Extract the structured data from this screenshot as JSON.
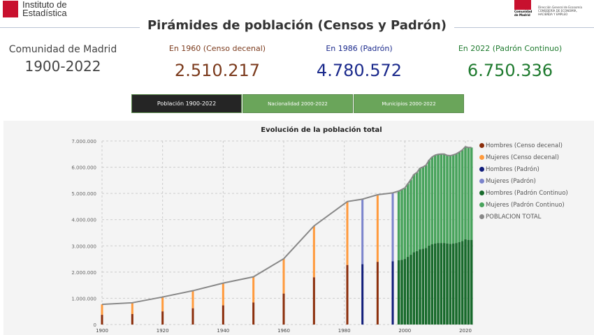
{
  "header": {
    "logo_left_text": [
      "Instituto de",
      "Estadística"
    ],
    "logo_right_text": [
      "Comunidad de Madrid",
      "Dirección General de Economía",
      "CONSEJERÍA DE ECONOMÍA, HACIENDA Y EMPLEO"
    ],
    "title": "Pirámides de población (Censos y Padrón)"
  },
  "region": {
    "name": "Comunidad de Madrid",
    "period": "1900-2022"
  },
  "stats": [
    {
      "label": "En 1960 (Censo decenal)",
      "value": "2.510.217",
      "color": "#7b3a1c"
    },
    {
      "label": "En 1986 (Padrón)",
      "value": "4.780.572",
      "color": "#1b2a8c"
    },
    {
      "label": "En 2022 (Padrón Continuo)",
      "value": "6.750.336",
      "color": "#1e7a2e"
    }
  ],
  "tabs": [
    {
      "label": "Población 1900-2022",
      "active": true
    },
    {
      "label": "Nacionalidad 2000-2022",
      "active": false
    },
    {
      "label": "Municipios 2000-2022",
      "active": false
    }
  ],
  "chart_data": {
    "type": "bar",
    "title": "Evolución de la población total",
    "stacked": true,
    "grid": true,
    "legend": "right",
    "ylim": [
      0,
      7000000
    ],
    "yticks": [
      "0",
      "1.000.000",
      "2.000.000",
      "3.000.000",
      "4.000.000",
      "5.000.000",
      "6.000.000",
      "7.000.000"
    ],
    "xticks": [
      "1900",
      "1920",
      "1940",
      "1960",
      "1980",
      "2000",
      "2020"
    ],
    "xlim": [
      1900,
      2022
    ],
    "legend_entries": [
      {
        "name": "Hombres (Censo decenal)",
        "color": "#8b2e0b"
      },
      {
        "name": "Mujeres   (Censo decenal)",
        "color": "#ff9a3c"
      },
      {
        "name": "Hombres (Padrón)",
        "color": "#101c7a"
      },
      {
        "name": "Mujeres   (Padrón)",
        "color": "#7b84cc"
      },
      {
        "name": "Hombres (Padrón Continuo)",
        "color": "#186a2c"
      },
      {
        "name": "Mujeres   (Padrón Continuo)",
        "color": "#48a35c"
      },
      {
        "name": "POBLACION TOTAL",
        "color": "#888888"
      }
    ],
    "series_groups": [
      {
        "source": "Censo decenal",
        "years": [
          1900,
          1910,
          1920,
          1930,
          1940,
          1950,
          1960,
          1970,
          1981,
          1991
        ],
        "hombres": [
          370000,
          400000,
          500000,
          620000,
          730000,
          840000,
          1180000,
          1800000,
          2270000,
          2390000
        ],
        "total": [
          770000,
          830000,
          1050000,
          1290000,
          1580000,
          1820000,
          2510217,
          3760000,
          4690000,
          4950000
        ]
      },
      {
        "source": "Padrón",
        "years": [
          1986,
          1996
        ],
        "hombres": [
          2300000,
          2410000
        ],
        "total": [
          4780572,
          5020000
        ]
      },
      {
        "source": "Padrón Continuo",
        "years": [
          1998,
          1999,
          2000,
          2001,
          2002,
          2003,
          2004,
          2005,
          2006,
          2007,
          2008,
          2009,
          2010,
          2011,
          2012,
          2013,
          2014,
          2015,
          2016,
          2017,
          2018,
          2019,
          2020,
          2021,
          2022
        ],
        "hombres": [
          2450000,
          2470000,
          2500000,
          2580000,
          2660000,
          2760000,
          2800000,
          2870000,
          2890000,
          2920000,
          3010000,
          3060000,
          3090000,
          3110000,
          3110000,
          3110000,
          3090000,
          3080000,
          3090000,
          3110000,
          3140000,
          3180000,
          3250000,
          3230000,
          3230000
        ],
        "total": [
          5090000,
          5150000,
          5210000,
          5370000,
          5530000,
          5720000,
          5800000,
          5960000,
          6010000,
          6080000,
          6270000,
          6390000,
          6460000,
          6490000,
          6500000,
          6500000,
          6450000,
          6440000,
          6470000,
          6510000,
          6580000,
          6660000,
          6780000,
          6750000,
          6750336
        ]
      }
    ]
  }
}
